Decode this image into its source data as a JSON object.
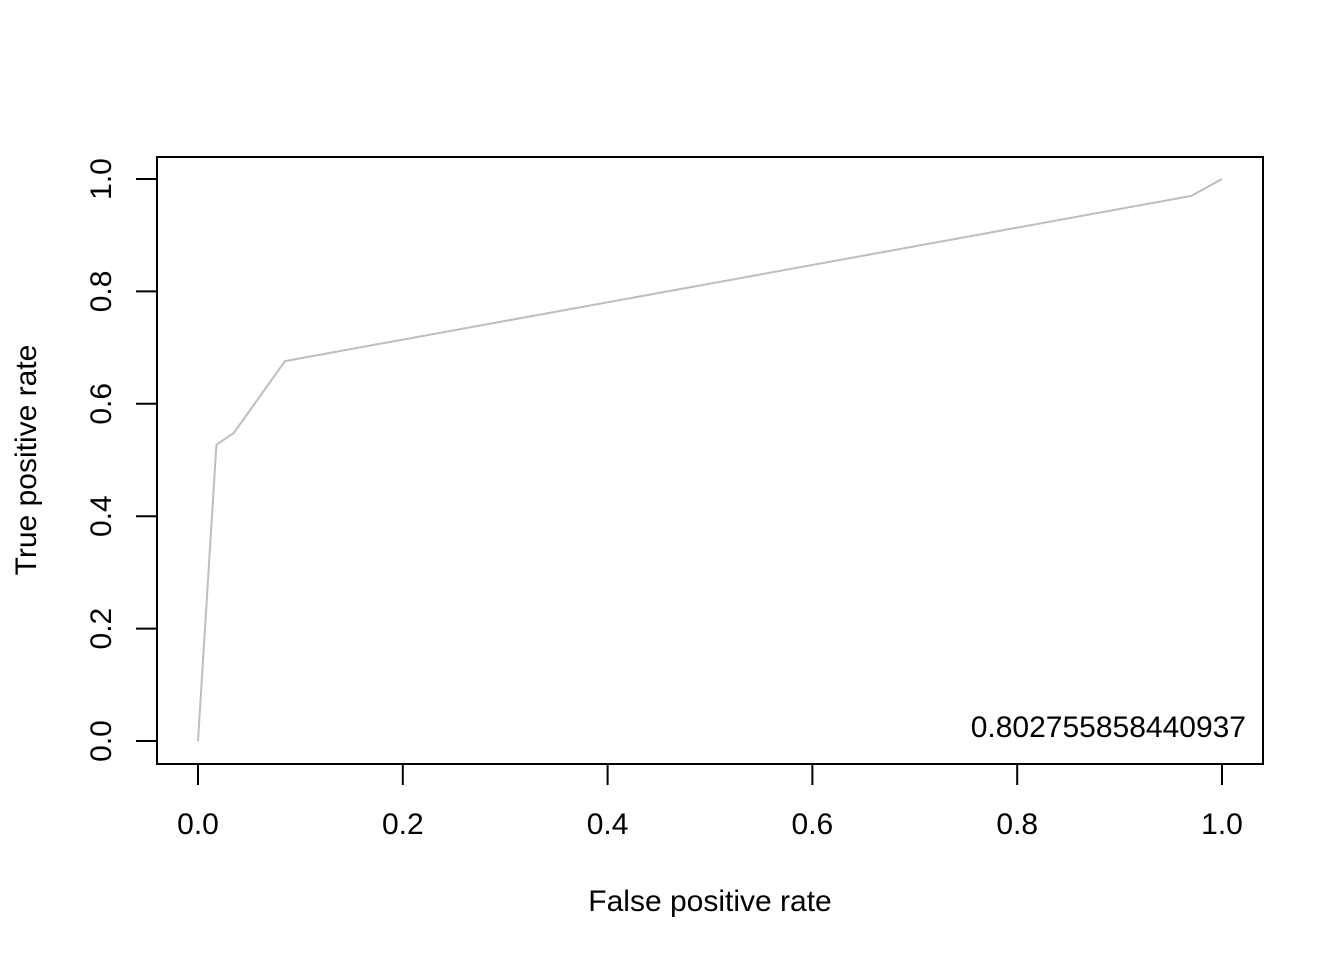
{
  "chart_data": {
    "type": "line",
    "title": "",
    "xlabel": "False positive rate",
    "ylabel": "True positive rate",
    "xlim": [
      0,
      1
    ],
    "ylim": [
      0,
      1
    ],
    "x_ticks": [
      "0.0",
      "0.2",
      "0.4",
      "0.6",
      "0.8",
      "1.0"
    ],
    "y_ticks": [
      "0.0",
      "0.2",
      "0.4",
      "0.6",
      "0.8",
      "1.0"
    ],
    "grid": false,
    "legend": "none",
    "line_color": "#BEBEBE",
    "series": [
      {
        "x": [
          0.0,
          0.018,
          0.035,
          0.085,
          0.97,
          1.0
        ],
        "y": [
          0.0,
          0.527,
          0.548,
          0.676,
          0.97,
          1.0
        ]
      }
    ],
    "annotation": "0.802755858440937"
  }
}
